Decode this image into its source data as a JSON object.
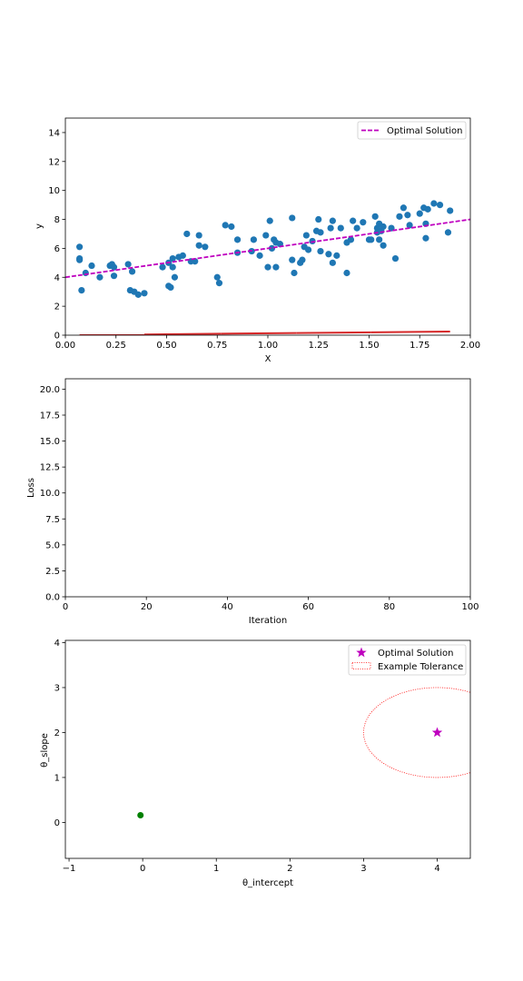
{
  "chart_data": [
    {
      "type": "scatter",
      "xlabel": "X",
      "ylabel": "y",
      "xlim": [
        0,
        2
      ],
      "ylim": [
        0,
        15
      ],
      "xticks": [
        "0.00",
        "0.25",
        "0.50",
        "0.75",
        "1.00",
        "1.25",
        "1.50",
        "1.75",
        "2.00"
      ],
      "yticks": [
        "0",
        "2",
        "4",
        "6",
        "8",
        "10",
        "12",
        "14"
      ],
      "grid": false,
      "legend_position": "top-right",
      "points": [
        [
          0.07,
          6.1
        ],
        [
          0.07,
          5.2
        ],
        [
          0.07,
          5.3
        ],
        [
          0.08,
          3.1
        ],
        [
          0.1,
          4.3
        ],
        [
          0.13,
          4.8
        ],
        [
          0.17,
          4.0
        ],
        [
          0.22,
          4.8
        ],
        [
          0.23,
          4.9
        ],
        [
          0.24,
          4.7
        ],
        [
          0.24,
          4.1
        ],
        [
          0.31,
          4.9
        ],
        [
          0.32,
          3.1
        ],
        [
          0.33,
          4.4
        ],
        [
          0.34,
          3.0
        ],
        [
          0.36,
          2.8
        ],
        [
          0.39,
          2.9
        ],
        [
          0.48,
          4.7
        ],
        [
          0.51,
          5.0
        ],
        [
          0.51,
          3.4
        ],
        [
          0.52,
          3.3
        ],
        [
          0.53,
          5.3
        ],
        [
          0.53,
          4.7
        ],
        [
          0.54,
          4.0
        ],
        [
          0.56,
          5.4
        ],
        [
          0.58,
          5.5
        ],
        [
          0.6,
          7.0
        ],
        [
          0.62,
          5.1
        ],
        [
          0.64,
          5.1
        ],
        [
          0.66,
          6.9
        ],
        [
          0.66,
          6.2
        ],
        [
          0.69,
          6.1
        ],
        [
          0.75,
          4.0
        ],
        [
          0.76,
          3.6
        ],
        [
          0.79,
          7.6
        ],
        [
          0.82,
          7.5
        ],
        [
          0.85,
          5.7
        ],
        [
          0.85,
          6.6
        ],
        [
          0.92,
          5.8
        ],
        [
          0.93,
          6.6
        ],
        [
          0.96,
          5.5
        ],
        [
          0.99,
          6.9
        ],
        [
          1.0,
          4.7
        ],
        [
          1.01,
          7.9
        ],
        [
          1.02,
          6.0
        ],
        [
          1.03,
          6.6
        ],
        [
          1.04,
          6.4
        ],
        [
          1.04,
          4.7
        ],
        [
          1.06,
          6.3
        ],
        [
          1.12,
          8.1
        ],
        [
          1.12,
          5.2
        ],
        [
          1.13,
          4.3
        ],
        [
          1.16,
          5.0
        ],
        [
          1.17,
          5.2
        ],
        [
          1.18,
          6.1
        ],
        [
          1.19,
          6.9
        ],
        [
          1.2,
          5.9
        ],
        [
          1.22,
          6.5
        ],
        [
          1.24,
          7.2
        ],
        [
          1.25,
          8.0
        ],
        [
          1.26,
          7.1
        ],
        [
          1.26,
          5.8
        ],
        [
          1.3,
          5.6
        ],
        [
          1.31,
          7.4
        ],
        [
          1.32,
          7.9
        ],
        [
          1.32,
          5.0
        ],
        [
          1.34,
          5.5
        ],
        [
          1.36,
          7.4
        ],
        [
          1.39,
          6.4
        ],
        [
          1.39,
          4.3
        ],
        [
          1.41,
          6.6
        ],
        [
          1.42,
          7.9
        ],
        [
          1.44,
          7.4
        ],
        [
          1.47,
          7.8
        ],
        [
          1.5,
          6.6
        ],
        [
          1.51,
          6.6
        ],
        [
          1.53,
          8.2
        ],
        [
          1.54,
          7.4
        ],
        [
          1.54,
          7.1
        ],
        [
          1.55,
          6.6
        ],
        [
          1.55,
          7.7
        ],
        [
          1.56,
          7.2
        ],
        [
          1.57,
          6.2
        ],
        [
          1.57,
          7.5
        ],
        [
          1.61,
          7.4
        ],
        [
          1.63,
          5.3
        ],
        [
          1.65,
          8.2
        ],
        [
          1.67,
          8.8
        ],
        [
          1.69,
          8.3
        ],
        [
          1.7,
          7.6
        ],
        [
          1.75,
          8.4
        ],
        [
          1.77,
          8.8
        ],
        [
          1.78,
          6.7
        ],
        [
          1.78,
          7.7
        ],
        [
          1.79,
          8.7
        ],
        [
          1.82,
          9.1
        ],
        [
          1.85,
          9.0
        ],
        [
          1.89,
          7.1
        ],
        [
          1.9,
          8.6
        ]
      ],
      "point_color": "#1f77b4",
      "optimal_line": {
        "name": "Optimal Solution",
        "intercept": 4,
        "slope": 2,
        "color": "#bf00bf"
      },
      "red_segments": [
        {
          "x": [
            0.07,
            0.39
          ],
          "y": [
            0.0,
            0.0
          ]
        },
        {
          "x": [
            0.39,
            0.77
          ],
          "y": [
            0.05,
            0.1
          ]
        },
        {
          "x": [
            0.77,
            1.14
          ],
          "y": [
            0.1,
            0.15
          ]
        },
        {
          "x": [
            1.14,
            1.51
          ],
          "y": [
            0.15,
            0.2
          ]
        },
        {
          "x": [
            1.51,
            1.9
          ],
          "y": [
            0.2,
            0.25
          ]
        }
      ],
      "red_color": "#d62728"
    },
    {
      "type": "line",
      "xlabel": "Iteration",
      "ylabel": "Loss",
      "xlim": [
        0,
        100
      ],
      "ylim": [
        0,
        21
      ],
      "xticks": [
        "0",
        "20",
        "40",
        "60",
        "80",
        "100"
      ],
      "yticks": [
        "0.0",
        "2.5",
        "5.0",
        "7.5",
        "10.0",
        "12.5",
        "15.0",
        "17.5",
        "20.0"
      ],
      "grid": false,
      "series": []
    },
    {
      "type": "scatter",
      "xlabel": "θ_intercept",
      "ylabel": "θ_slope",
      "xlim": [
        -1.05,
        4.45
      ],
      "ylim": [
        -0.8,
        4.05
      ],
      "xticks": [
        "−1",
        "0",
        "1",
        "2",
        "3",
        "4"
      ],
      "yticks": [
        "0",
        "1",
        "2",
        "3",
        "4"
      ],
      "grid": false,
      "legend_position": "top-right",
      "optimal_point": {
        "name": "Optimal Solution",
        "x": 4,
        "y": 2,
        "color": "#bf00bf"
      },
      "tolerance": {
        "name": "Example Tolerance",
        "cx": 4,
        "cy": 2,
        "rx": 1.0,
        "ry": 1.0,
        "color": "#ff0000"
      },
      "current_point": {
        "x": -0.03,
        "y": 0.16,
        "color": "#008000"
      }
    }
  ]
}
